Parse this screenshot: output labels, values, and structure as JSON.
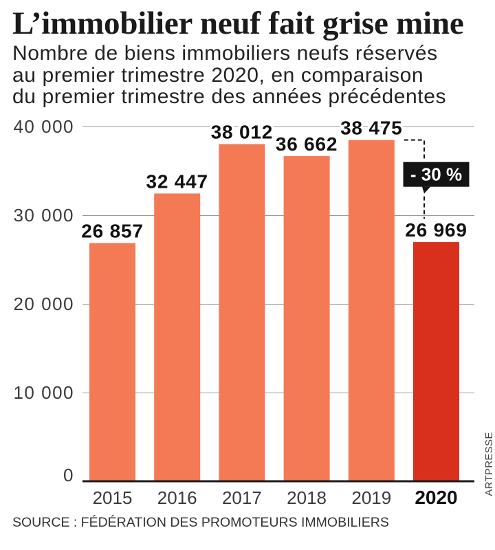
{
  "chart_data": {
    "type": "bar",
    "title": "L’immobilier neuf fait grise mine",
    "subtitle": "Nombre de biens immobiliers neufs réservés\nau premier trimestre 2020, en comparaison\ndu premier trimestre des années précédentes",
    "categories": [
      "2015",
      "2016",
      "2017",
      "2018",
      "2019",
      "2020"
    ],
    "values": [
      26857,
      32447,
      38012,
      36662,
      38475,
      26969
    ],
    "value_labels": [
      "26 857",
      "32 447",
      "38 012",
      "36 662",
      "38 475",
      "26 969"
    ],
    "highlight_category": "2020",
    "ylim": [
      0,
      40000
    ],
    "yticks": [
      40000,
      30000,
      20000,
      10000,
      0
    ],
    "ytick_labels": [
      "40 000",
      "30 000",
      "20 000",
      "10 000",
      "0"
    ],
    "grid": true,
    "annotation": {
      "text": "- 30 %",
      "from_category": "2019",
      "to_category": "2020"
    },
    "source": "SOURCE : FÉDÉRATION DES PROMOTEURS IMMOBILIERS"
  },
  "credit": "ARTPRESSE",
  "colors": {
    "bar": "#F47A55",
    "highlight_bar": "#D9301E",
    "grid": "#9a9a9a",
    "axis": "#1a1a1a",
    "annotation": "#141414",
    "annotation_text": "#ffffff"
  }
}
